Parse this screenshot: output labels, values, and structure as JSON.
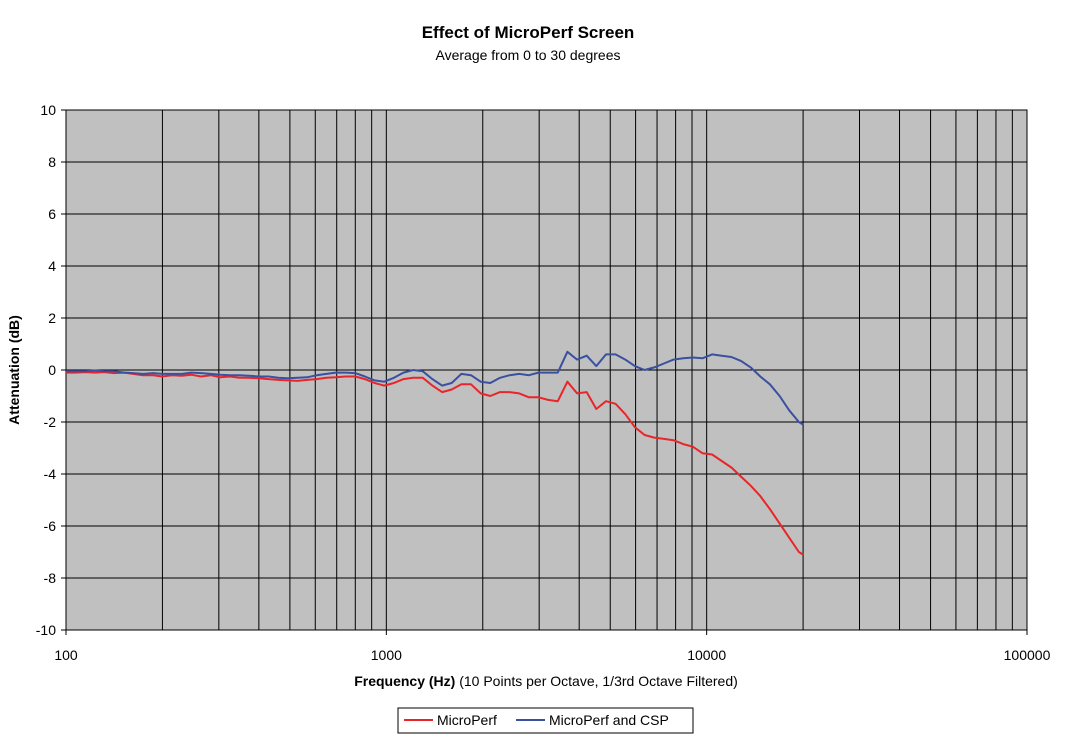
{
  "chart_data": {
    "type": "line",
    "title": "Effect of MicroPerf Screen",
    "subtitle": "Average from 0 to 30 degrees",
    "xlabel": "Frequency (Hz)",
    "xlabel_note": " (10 Points per Octave, 1/3rd Octave Filtered)",
    "ylabel": "Attenuation (dB)",
    "x_scale": "log",
    "xlim": [
      100,
      100000
    ],
    "ylim": [
      -10,
      10
    ],
    "x_ticks": [
      100,
      1000,
      10000,
      100000
    ],
    "x_tick_labels": [
      "100",
      "1000",
      "10000",
      "100000"
    ],
    "y_ticks": [
      -10,
      -8,
      -6,
      -4,
      -2,
      0,
      2,
      4,
      6,
      8,
      10
    ],
    "y_tick_labels": [
      "-10",
      "-8",
      "-6",
      "-4",
      "-2",
      "0",
      "2",
      "4",
      "6",
      "8",
      "10"
    ],
    "grid": true,
    "plot_background": "#c0c0c0",
    "legend_position": "bottom",
    "series": [
      {
        "name": "MicroPerf",
        "color": "#e8262a",
        "x": [
          100,
          107,
          115,
          123,
          132,
          141,
          152,
          162,
          174,
          187,
          200,
          214,
          230,
          246,
          264,
          283,
          303,
          325,
          348,
          373,
          400,
          429,
          460,
          492,
          528,
          566,
          606,
          650,
          696,
          746,
          800,
          857,
          919,
          985,
          1056,
          1131,
          1213,
          1300,
          1393,
          1493,
          1600,
          1715,
          1838,
          1970,
          2111,
          2263,
          2425,
          2599,
          2786,
          2986,
          3200,
          3430,
          3676,
          3940,
          4222,
          4525,
          4850,
          5198,
          5571,
          5971,
          6400,
          6859,
          7352,
          7879,
          8445,
          9051,
          9701,
          10397,
          11143,
          11943,
          12800,
          13719,
          14703,
          15759,
          16890,
          18102,
          19401,
          20000
        ],
        "values": [
          -0.1,
          -0.1,
          -0.08,
          -0.1,
          -0.08,
          -0.12,
          -0.1,
          -0.15,
          -0.2,
          -0.2,
          -0.25,
          -0.2,
          -0.22,
          -0.18,
          -0.25,
          -0.2,
          -0.28,
          -0.25,
          -0.3,
          -0.3,
          -0.32,
          -0.35,
          -0.38,
          -0.4,
          -0.42,
          -0.38,
          -0.35,
          -0.3,
          -0.28,
          -0.25,
          -0.25,
          -0.35,
          -0.5,
          -0.6,
          -0.5,
          -0.35,
          -0.3,
          -0.3,
          -0.6,
          -0.85,
          -0.75,
          -0.55,
          -0.55,
          -0.9,
          -1.0,
          -0.85,
          -0.85,
          -0.9,
          -1.05,
          -1.05,
          -1.15,
          -1.2,
          -0.45,
          -0.9,
          -0.85,
          -1.5,
          -1.2,
          -1.3,
          -1.7,
          -2.2,
          -2.5,
          -2.6,
          -2.65,
          -2.7,
          -2.85,
          -2.95,
          -3.2,
          -3.25,
          -3.5,
          -3.75,
          -4.1,
          -4.45,
          -4.85,
          -5.35,
          -5.9,
          -6.45,
          -7.0,
          -7.1
        ]
      },
      {
        "name": "MicroPerf and CSP",
        "color": "#3a50a0",
        "x": [
          100,
          107,
          115,
          123,
          132,
          141,
          152,
          162,
          174,
          187,
          200,
          214,
          230,
          246,
          264,
          283,
          303,
          325,
          348,
          373,
          400,
          429,
          460,
          492,
          528,
          566,
          606,
          650,
          696,
          746,
          800,
          857,
          919,
          985,
          1056,
          1131,
          1213,
          1300,
          1393,
          1493,
          1600,
          1715,
          1838,
          1970,
          2111,
          2263,
          2425,
          2599,
          2786,
          2986,
          3200,
          3430,
          3676,
          3940,
          4222,
          4525,
          4850,
          5198,
          5571,
          5971,
          6400,
          6859,
          7352,
          7879,
          8445,
          9051,
          9701,
          10397,
          11143,
          11943,
          12800,
          13719,
          14703,
          15759,
          16890,
          18102,
          19401,
          20000
        ],
        "values": [
          -0.05,
          -0.05,
          -0.05,
          -0.02,
          -0.05,
          -0.05,
          -0.1,
          -0.12,
          -0.15,
          -0.12,
          -0.15,
          -0.15,
          -0.15,
          -0.1,
          -0.12,
          -0.15,
          -0.18,
          -0.2,
          -0.2,
          -0.22,
          -0.25,
          -0.25,
          -0.3,
          -0.32,
          -0.3,
          -0.28,
          -0.2,
          -0.15,
          -0.1,
          -0.1,
          -0.12,
          -0.25,
          -0.4,
          -0.45,
          -0.3,
          -0.1,
          0.0,
          -0.05,
          -0.35,
          -0.6,
          -0.5,
          -0.15,
          -0.2,
          -0.45,
          -0.5,
          -0.3,
          -0.2,
          -0.15,
          -0.2,
          -0.1,
          -0.1,
          -0.1,
          0.7,
          0.4,
          0.55,
          0.15,
          0.6,
          0.6,
          0.4,
          0.15,
          0.0,
          0.1,
          0.25,
          0.4,
          0.45,
          0.48,
          0.45,
          0.6,
          0.55,
          0.5,
          0.35,
          0.1,
          -0.25,
          -0.55,
          -1.0,
          -1.55,
          -2.0,
          -2.1
        ]
      }
    ]
  }
}
